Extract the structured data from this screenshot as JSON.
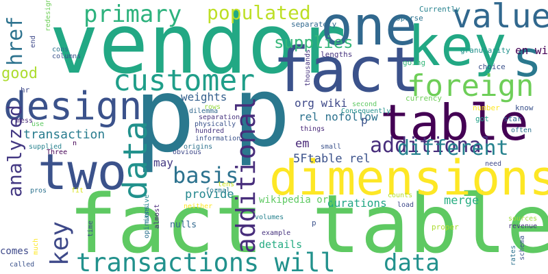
{
  "words": [
    {
      "text": "p",
      "color": "#2a788e"
    },
    {
      "text": "p",
      "color": "#2a788e"
    },
    {
      "text": "vendor",
      "color": "#22a884"
    },
    {
      "text": "fact table",
      "color": "#5ec962"
    },
    {
      "text": "dimensions",
      "color": "#fde725"
    },
    {
      "text": "fact",
      "color": "#3b528b"
    },
    {
      "text": "one",
      "color": "#31688e"
    },
    {
      "text": "key",
      "color": "#22a884"
    },
    {
      "text": "s",
      "color": "#2a788e"
    },
    {
      "text": "table",
      "color": "#440154"
    },
    {
      "text": "two",
      "color": "#3b528b"
    },
    {
      "text": "design",
      "color": "#3b528b"
    },
    {
      "text": "transactions will",
      "color": "#21918c"
    },
    {
      "text": "customer",
      "color": "#1f9e89"
    },
    {
      "text": "value",
      "color": "#31688e"
    },
    {
      "text": "foreign",
      "color": "#6ece58"
    },
    {
      "text": "primary",
      "color": "#2db27d"
    },
    {
      "text": "populated",
      "color": "#bddf26"
    },
    {
      "text": "data",
      "color": "#21918c"
    },
    {
      "text": "additional",
      "color": "#472d7b"
    },
    {
      "text": "different",
      "color": "#26828e"
    },
    {
      "text": "basis",
      "color": "#2c728e"
    },
    {
      "text": "supplies",
      "color": "#35b779"
    },
    {
      "text": "good",
      "color": "#addc30"
    },
    {
      "text": "analyzed",
      "color": "#443983"
    },
    {
      "text": "key",
      "color": "#3e4989"
    },
    {
      "text": "href",
      "color": "#2c728e"
    },
    {
      "text": "en wikipedia",
      "color": "#440154"
    },
    {
      "text": "transaction",
      "color": "#287c8e"
    },
    {
      "text": "em",
      "color": "#482878"
    },
    {
      "text": "5Ftable rel",
      "color": "#3b528b"
    },
    {
      "text": "org wiki",
      "color": "#3e4989"
    },
    {
      "text": "rel nofollow",
      "color": "#2c728e"
    },
    {
      "text": "weights",
      "color": "#35608d"
    },
    {
      "text": "provide",
      "color": "#24878e"
    },
    {
      "text": "may",
      "color": "#443983"
    },
    {
      "text": "merge",
      "color": "#27ad81"
    },
    {
      "text": "durations",
      "color": "#21a685"
    },
    {
      "text": "wikipedia org",
      "color": "#5ec962"
    },
    {
      "text": "details",
      "color": "#25ab82"
    },
    {
      "text": "comes",
      "color": "#3e4989"
    },
    {
      "text": "cost",
      "color": "#9fda3a"
    },
    {
      "text": "nulls",
      "color": "#31688e"
    },
    {
      "text": "p",
      "color": "#3b528b"
    },
    {
      "text": "lengths",
      "color": "#46337e"
    },
    {
      "text": "sparse",
      "color": "#2c728e"
    },
    {
      "text": "Currently",
      "color": "#26828e"
    },
    {
      "text": "granularity",
      "color": "#21918c"
    },
    {
      "text": "going",
      "color": "#35b779"
    },
    {
      "text": "choice",
      "color": "#3b528b"
    },
    {
      "text": "currency",
      "color": "#6ece58"
    },
    {
      "text": "separately",
      "color": "#31688e"
    },
    {
      "text": "thousands",
      "color": "#46337e"
    },
    {
      "text": "hr",
      "color": "#3e4989"
    },
    {
      "text": "second",
      "color": "#5ec962"
    },
    {
      "text": "Consequently",
      "color": "#21918c"
    },
    {
      "text": "number",
      "color": "#fde725"
    },
    {
      "text": "know",
      "color": "#3b528b"
    },
    {
      "text": "star",
      "color": "#31688e"
    },
    {
      "text": "got",
      "color": "#1fa187"
    },
    {
      "text": "often",
      "color": "#2c728e"
    },
    {
      "text": "need",
      "color": "#3e4989"
    },
    {
      "text": "sources",
      "color": "#9fda3a"
    },
    {
      "text": "revenue",
      "color": "#46337e"
    },
    {
      "text": "schema",
      "color": "#3b528b"
    },
    {
      "text": "rates",
      "color": "#2c728e"
    },
    {
      "text": "proper",
      "color": "#addc30"
    },
    {
      "text": "counts",
      "color": "#b5de2b"
    },
    {
      "text": "load",
      "color": "#3e4989"
    },
    {
      "text": "example",
      "color": "#46337e"
    },
    {
      "text": "volumes",
      "color": "#26828e"
    },
    {
      "text": "neither",
      "color": "#fde725"
    },
    {
      "text": "almost",
      "color": "#482878"
    },
    {
      "text": "massive",
      "color": "#24878e"
    },
    {
      "text": "opinions",
      "color": "#2c728e"
    },
    {
      "text": "formal",
      "color": "#2a788e"
    },
    {
      "text": "tens",
      "color": "#c8e020"
    },
    {
      "text": "time",
      "color": "#3e4989"
    },
    {
      "text": "fit",
      "color": "#d8e219"
    },
    {
      "text": "pros",
      "color": "#2c728e"
    },
    {
      "text": "much",
      "color": "#fde725"
    },
    {
      "text": "called",
      "color": "#3b528b"
    },
    {
      "text": "origins",
      "color": "#2c728e"
    },
    {
      "text": "obvious",
      "color": "#3e4989"
    },
    {
      "text": "hundred",
      "color": "#46337e"
    },
    {
      "text": "information",
      "color": "#3b528b"
    },
    {
      "text": "Three",
      "color": "#440154"
    },
    {
      "text": "n",
      "color": "#440154"
    },
    {
      "text": "supplied",
      "color": "#26828e"
    },
    {
      "text": "small",
      "color": "#3b528b"
    },
    {
      "text": "things",
      "color": "#482878"
    },
    {
      "text": "rows",
      "color": "#95d840"
    },
    {
      "text": "physically",
      "color": "#3b528b"
    },
    {
      "text": "separation",
      "color": "#46337e"
    },
    {
      "text": "dilemma",
      "color": "#31688e"
    },
    {
      "text": "mess",
      "color": "#482878"
    },
    {
      "text": "use",
      "color": "#5ec962"
    },
    {
      "text": "end",
      "color": "#3e4989"
    },
    {
      "text": "redesign",
      "color": "#6ece58"
    },
    {
      "text": "cons",
      "color": "#2c728e"
    },
    {
      "text": "columns",
      "color": "#3b528b"
    },
    {
      "text": "others",
      "color": "#b5de2b"
    },
    {
      "text": "actually",
      "color": "#26828e"
    },
    {
      "text": "p",
      "color": "#3b528b"
    }
  ]
}
